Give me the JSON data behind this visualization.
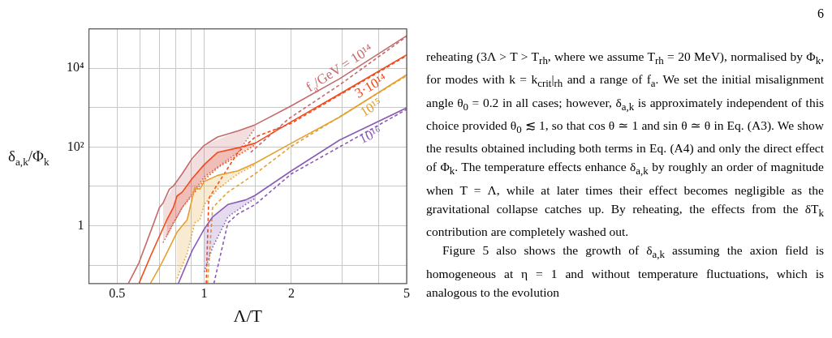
{
  "chart_data": {
    "type": "line",
    "xlabel": "Λ/T",
    "ylabel": "δ$_{a,k}$/Φ$_{k}$",
    "log": "xy",
    "grid": true,
    "legend": false,
    "marker": "none",
    "xlim": [
      0.4,
      5
    ],
    "ylim": [
      0.034,
      100000
    ],
    "xticks": [
      0.5,
      {
        "value": 0.6,
        "label": null
      },
      {
        "value": 0.7,
        "label": null
      },
      {
        "value": 0.8,
        "label": null
      },
      {
        "value": 0.9,
        "label": null
      },
      1,
      {
        "value": 1.5,
        "label": null
      },
      2,
      {
        "value": 3,
        "label": null
      },
      {
        "value": 4,
        "label": null
      },
      5
    ],
    "yticks": [
      {
        "value": 0.1,
        "label": null
      },
      1,
      {
        "value": 10,
        "label": null
      },
      {
        "value": 100,
        "label": "10²"
      },
      {
        "value": 1000,
        "label": null
      },
      {
        "value": 10000,
        "label": "10⁴"
      }
    ],
    "series": [
      {
        "name": "f$_{a}$/GeV = 10¹⁴",
        "color": "#c56a6a",
        "line_style": "solid",
        "x": [
          0.547,
          0.595,
          0.658,
          0.7,
          0.721,
          0.758,
          0.782,
          0.839,
          0.909,
          1,
          1.113,
          1.308,
          1.5,
          2,
          2.934,
          5
        ],
        "values": [
          0.034,
          0.114,
          0.82,
          2.88,
          3.77,
          8.5,
          10.1,
          20.8,
          51,
          110,
          179,
          256,
          367,
          1115,
          5410,
          66800
        ]
      },
      {
        "name": "3·10¹⁴",
        "color": "#f44a1a",
        "line_style": "solid",
        "x": [
          0.595,
          0.658,
          0.743,
          0.782,
          0.806,
          0.839,
          0.909,
          1,
          1.113,
          1.308,
          1.5,
          2,
          2.934,
          5
        ],
        "values": [
          0.034,
          0.195,
          1.41,
          2.88,
          5.7,
          7.1,
          15.8,
          35.6,
          73,
          95,
          125,
          439,
          2210,
          21900
        ]
      },
      {
        "name": "10¹⁵",
        "color": "#e5a030",
        "line_style": "solid",
        "x": [
          0.652,
          0.714,
          0.806,
          0.873,
          0.928,
          0.966,
          1,
          1.113,
          1.308,
          1.5,
          2,
          2.934,
          5
        ],
        "values": [
          0.034,
          0.114,
          0.69,
          1.41,
          9.3,
          8.5,
          13.3,
          19,
          24.8,
          38.9,
          125,
          574,
          6840
        ]
      },
      {
        "name": "10¹⁶",
        "color": "#8a5cb5",
        "line_style": "solid",
        "x": [
          0.814,
          0.909,
          1,
          1.069,
          1.207,
          1.39,
          1.5,
          2,
          2.934,
          5
        ],
        "values": [
          0.034,
          0.234,
          0.82,
          1.68,
          3.45,
          4.52,
          5.9,
          24.8,
          150,
          984
        ]
      },
      {
        "color": "#c56a6a",
        "line_style": "dotted",
        "x": [
          0.721,
          0.839,
          1,
          1.308,
          1.5
        ],
        "values": [
          0.37,
          2.88,
          17.4,
          73,
          306
        ],
        "lower": [
          0.37,
          2.88,
          17.4,
          73,
          306
        ],
        "upper": [
          3.77,
          20.8,
          110,
          256,
          367
        ]
      },
      {
        "color": "#f44a1a",
        "line_style": "dotted",
        "x": [
          0.743,
          0.782,
          0.806,
          0.839,
          0.909,
          1,
          1.113,
          1.308,
          1.5
        ],
        "values": [
          0.57,
          1.18,
          1.68,
          2.88,
          5.9,
          14.5,
          29.7,
          61,
          114
        ],
        "lower": [
          0.57,
          1.18,
          1.68,
          2.88,
          5.9,
          14.5,
          29.7,
          61,
          114
        ],
        "upper": [
          1.41,
          2.88,
          5.7,
          7.1,
          15.8,
          35.6,
          73,
          95,
          125
        ]
      },
      {
        "color": "#e5a030",
        "line_style": "dotted",
        "x": [
          0.806,
          0.873,
          0.928,
          0.966,
          1,
          1.113,
          1.308,
          1.5
        ],
        "values": [
          0.046,
          0.195,
          1.18,
          1.41,
          3.45,
          8.5,
          20.8,
          35.6
        ],
        "lower": [
          0.046,
          0.195,
          1.18,
          1.41,
          3.45,
          8.5,
          20.8,
          35.6
        ],
        "upper": [
          0.69,
          1.41,
          9.3,
          8.5,
          13.3,
          19,
          24.8,
          38.9
        ]
      },
      {
        "color": "#8a5cb5",
        "line_style": "dotted",
        "x": [
          1,
          1.069,
          1.207,
          1.39,
          1.5
        ],
        "values": [
          0.067,
          0.28,
          1.68,
          3.45,
          4.94
        ],
        "lower": [
          0.067,
          0.28,
          1.68,
          3.45,
          4.94
        ],
        "upper": [
          0.82,
          1.68,
          3.45,
          4.52,
          5.9
        ]
      },
      {
        "color": "#c56a6a",
        "line_style": "dashed",
        "x": [
          1.447,
          1.96,
          2.934,
          5
        ],
        "values": [
          73,
          525,
          3780,
          64000
        ]
      },
      {
        "color": "#f44a1a",
        "line_style": "dashed",
        "x": [
          1.016,
          1.037,
          1.069,
          1.136,
          1.308,
          1.5,
          2,
          5
        ],
        "values": [
          0.034,
          4.94,
          7.1,
          14.5,
          73,
          179,
          401,
          20800
        ]
      },
      {
        "color": "#e5a030",
        "line_style": "dashed",
        "x": [
          1.027,
          1.069,
          1.207,
          1.5,
          2,
          5
        ],
        "values": [
          0.034,
          2.88,
          7.1,
          20.8,
          104,
          6460
        ]
      },
      {
        "color": "#8a5cb5",
        "line_style": "dashed",
        "x": [
          1.08,
          1.207,
          1.308,
          1.5,
          2,
          5
        ],
        "values": [
          0.034,
          1.18,
          2.0,
          3.45,
          20.8,
          900
        ]
      }
    ],
    "annotations": [
      "6",
      "reheating (3Λ > T > T$_{rh}$, where we assume T$_{rh}$ = 20 MeV), normalised by Φ$_{k}$, for modes with k = k$_{crit}$|$_{rh}$ and a range of f$_{a}$. We set the initial misalignment angle θ$_{0}$ = 0.2 in all cases; however, δ$_{a,k}$ is approximately independent of this choice provided θ$_{0}$ ≲ 1, so that cos θ ≃ 1 and sin θ ≃ θ in Eq. (A3). We show the results obtained including both terms in Eq. (A4) and only the direct effect of Φ$_{k}$. The temperature effects enhance δ$_{a,k}$ by roughly an order of magnitude when T = Λ, while at later times their effect becomes negligible as the gravitational collapse catches up. By reheating, the effects from the δT$_{k}$ contribution are completely washed out.",
      "Figure 5 also shows the growth of δ$_{a,k}$ assuming the axion field is homogeneous at η = 1 and without temperature fluctuations, which is analogous to the evolution"
    ]
  }
}
